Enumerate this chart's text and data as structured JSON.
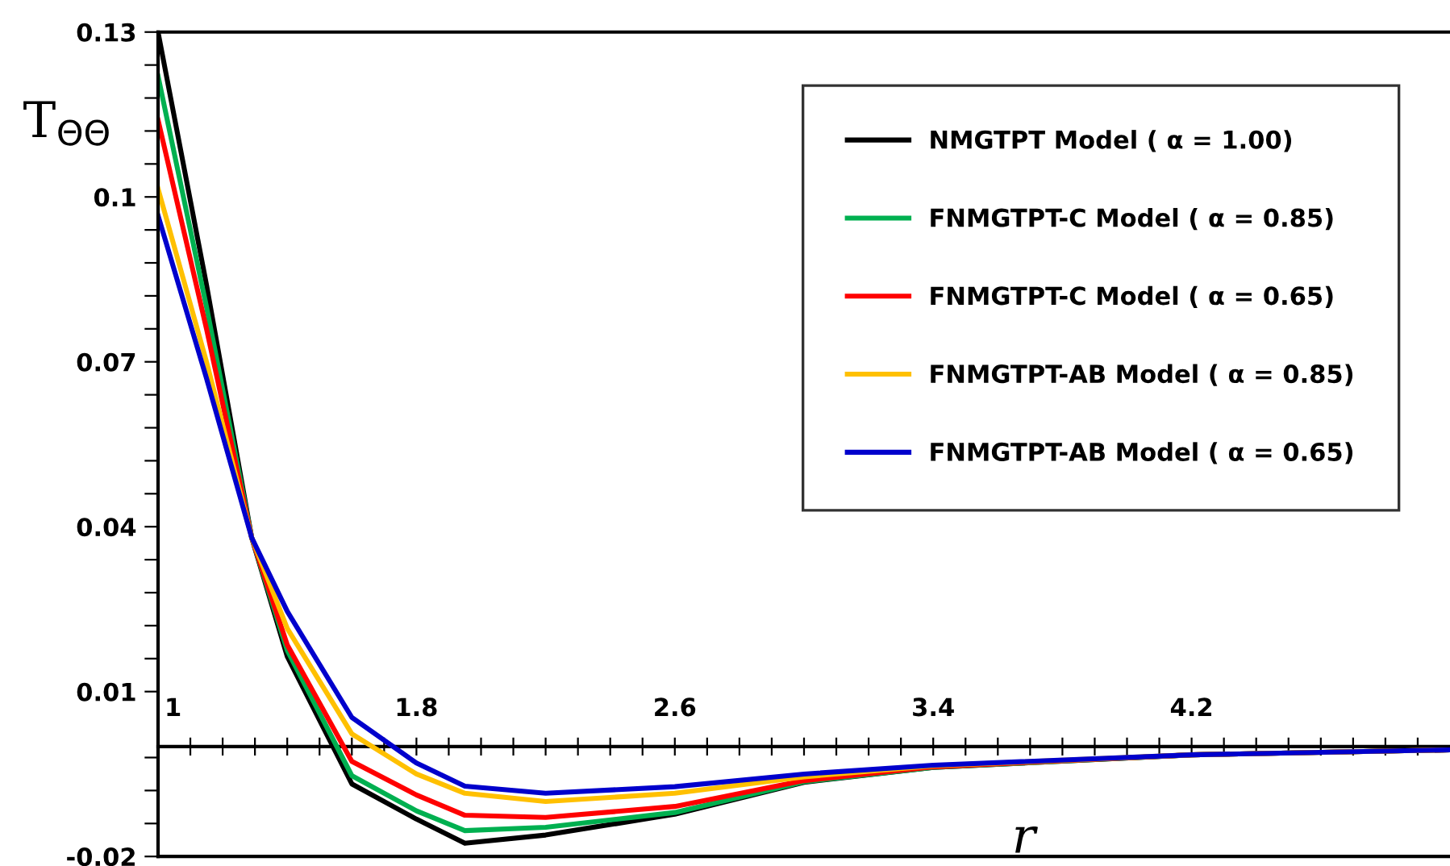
{
  "chart_data": {
    "type": "line",
    "xlabel": "r",
    "ylabel": "T$_{ΘΘ}$",
    "xlim": [
      1,
      5
    ],
    "ylim": [
      -0.02,
      0.13
    ],
    "xticks": [
      1,
      {
        "value": 1.1,
        "label": null
      },
      {
        "value": 1.2,
        "label": null
      },
      {
        "value": 1.3,
        "label": null
      },
      {
        "value": 1.4,
        "label": null
      },
      {
        "value": 1.5,
        "label": null
      },
      {
        "value": 1.6,
        "label": null
      },
      {
        "value": 1.7,
        "label": null
      },
      1.8,
      {
        "value": 1.9,
        "label": null
      },
      {
        "value": 2.0,
        "label": null
      },
      {
        "value": 2.1,
        "label": null
      },
      {
        "value": 2.2,
        "label": null
      },
      {
        "value": 2.3,
        "label": null
      },
      {
        "value": 2.4,
        "label": null
      },
      {
        "value": 2.5,
        "label": null
      },
      2.6,
      {
        "value": 2.7,
        "label": null
      },
      {
        "value": 2.8,
        "label": null
      },
      {
        "value": 2.9,
        "label": null
      },
      {
        "value": 3.0,
        "label": null
      },
      {
        "value": 3.1,
        "label": null
      },
      {
        "value": 3.2,
        "label": null
      },
      {
        "value": 3.3,
        "label": null
      },
      3.4,
      {
        "value": 3.5,
        "label": null
      },
      {
        "value": 3.6,
        "label": null
      },
      {
        "value": 3.7,
        "label": null
      },
      {
        "value": 3.8,
        "label": null
      },
      {
        "value": 3.9,
        "label": null
      },
      {
        "value": 4.0,
        "label": null
      },
      {
        "value": 4.1,
        "label": null
      },
      4.2,
      {
        "value": 4.3,
        "label": null
      },
      {
        "value": 4.4,
        "label": null
      },
      {
        "value": 4.5,
        "label": null
      },
      {
        "value": 4.6,
        "label": null
      },
      {
        "value": 4.7,
        "label": null
      },
      {
        "value": 4.8,
        "label": null
      },
      {
        "value": 4.9,
        "label": null
      }
    ],
    "yticks": [
      -0.02,
      {
        "value": -0.014,
        "label": null
      },
      {
        "value": -0.008,
        "label": null
      },
      {
        "value": -0.002,
        "label": null
      },
      0.01,
      {
        "value": 0.016,
        "label": null
      },
      {
        "value": 0.022,
        "label": null
      },
      {
        "value": 0.028,
        "label": null
      },
      {
        "value": 0.034,
        "label": null
      },
      0.04,
      {
        "value": 0.046,
        "label": null
      },
      {
        "value": 0.052,
        "label": null
      },
      {
        "value": 0.058,
        "label": null
      },
      {
        "value": 0.064,
        "label": null
      },
      0.07,
      {
        "value": 0.076,
        "label": null
      },
      {
        "value": 0.082,
        "label": null
      },
      {
        "value": 0.088,
        "label": null
      },
      {
        "value": 0.094,
        "label": null
      },
      0.1,
      {
        "value": 0.106,
        "label": null
      },
      {
        "value": 0.112,
        "label": null
      },
      {
        "value": 0.118,
        "label": null
      },
      {
        "value": 0.124,
        "label": null
      },
      0.13
    ],
    "x": [
      1,
      1.15,
      1.29,
      1.4,
      1.6,
      1.8,
      1.95,
      2.2,
      2.6,
      3.0,
      3.4,
      4.2,
      5
    ],
    "legend": "top right",
    "grid": false,
    "marker": "none",
    "line_style": "solid",
    "series": [
      {
        "name": "NMGTPT Model ( α = 1.00)",
        "color": "#000000",
        "values": [
          0.13,
          0.084,
          0.038,
          0.0164,
          -0.0068,
          -0.0132,
          -0.0176,
          -0.0161,
          -0.0123,
          -0.0065,
          -0.0038,
          -0.0015,
          -0.0006
        ]
      },
      {
        "name": "FNMGTPT-C Model ( α = 0.85)",
        "color": "#00b050",
        "values": [
          0.122,
          0.08,
          0.038,
          0.0175,
          -0.0053,
          -0.0117,
          -0.0153,
          -0.0147,
          -0.012,
          -0.0064,
          -0.0038,
          -0.0015,
          -0.0006
        ]
      },
      {
        "name": "FNMGTPT-C Model ( α = 0.65)",
        "color": "#ff0000",
        "values": [
          0.114,
          0.076,
          0.038,
          0.0185,
          -0.0027,
          -0.0088,
          -0.0125,
          -0.0129,
          -0.0109,
          -0.0062,
          -0.0037,
          -0.0015,
          -0.0006
        ]
      },
      {
        "name": "FNMGTPT-AB Model ( α = 0.85)",
        "color": "#ffc000",
        "values": [
          0.1015,
          0.07,
          0.038,
          0.0215,
          0.0023,
          -0.005,
          -0.0085,
          -0.01,
          -0.0085,
          -0.0055,
          -0.0035,
          -0.0015,
          -0.0006
        ]
      },
      {
        "name": "FNMGTPT-AB Model ( α = 0.65)",
        "color": "#0000cc",
        "values": [
          0.0966,
          0.067,
          0.038,
          0.0246,
          0.0053,
          -0.003,
          -0.0072,
          -0.0085,
          -0.0073,
          -0.005,
          -0.0034,
          -0.0015,
          -0.0006
        ]
      }
    ]
  }
}
